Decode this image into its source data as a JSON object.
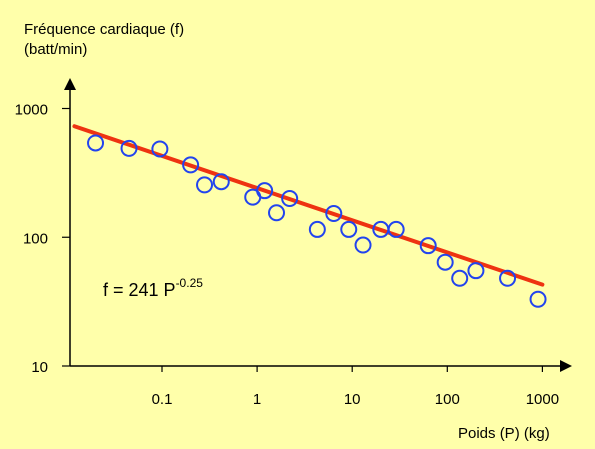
{
  "chart_data": {
    "type": "scatter",
    "ylabel_line1": "Fréquence cardiaque (f)",
    "ylabel_line2": "(batt/min)",
    "xlabel": "Poids (P) (kg)",
    "x_scale": "log",
    "y_scale": "log",
    "xlim": [
      0.01,
      1000
    ],
    "ylim": [
      10,
      1000
    ],
    "x_ticks": [
      0.1,
      1,
      10,
      100,
      1000
    ],
    "x_tick_labels": [
      "0.1",
      "1",
      "10",
      "100",
      "1000"
    ],
    "y_ticks": [
      10,
      100,
      1000
    ],
    "y_tick_labels": [
      "10",
      "100",
      "1000"
    ],
    "grid": false,
    "points": [
      {
        "x": 0.02,
        "y": 540
      },
      {
        "x": 0.045,
        "y": 490
      },
      {
        "x": 0.095,
        "y": 485
      },
      {
        "x": 0.2,
        "y": 365
      },
      {
        "x": 0.28,
        "y": 255
      },
      {
        "x": 0.42,
        "y": 270
      },
      {
        "x": 0.9,
        "y": 205
      },
      {
        "x": 1.2,
        "y": 230
      },
      {
        "x": 1.6,
        "y": 155
      },
      {
        "x": 2.2,
        "y": 200
      },
      {
        "x": 4.3,
        "y": 115
      },
      {
        "x": 6.4,
        "y": 153
      },
      {
        "x": 9.2,
        "y": 115
      },
      {
        "x": 13,
        "y": 87
      },
      {
        "x": 20,
        "y": 115
      },
      {
        "x": 29,
        "y": 115
      },
      {
        "x": 63,
        "y": 86
      },
      {
        "x": 95,
        "y": 64
      },
      {
        "x": 135,
        "y": 48
      },
      {
        "x": 200,
        "y": 55
      },
      {
        "x": 430,
        "y": 48
      },
      {
        "x": 900,
        "y": 33
      }
    ],
    "fit": {
      "coefficient": 241,
      "exponent": -0.25,
      "x_range": [
        0.012,
        1000
      ]
    },
    "annotation": {
      "formula_main": "f  =  241 P",
      "formula_exponent": "-0.25"
    },
    "colors": {
      "background": "#FFFFAA",
      "marker": "#2244EE",
      "fit_line": "#EE3311",
      "axis": "#000000"
    }
  }
}
